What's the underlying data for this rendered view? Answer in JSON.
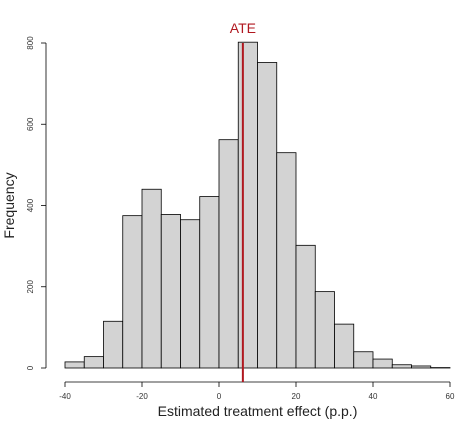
{
  "chart_data": {
    "type": "bar",
    "title": "",
    "xlabel": "Estimated treatment effect (p.p.)",
    "ylabel": "Frequency",
    "bin_edges": [
      -40,
      -35,
      -30,
      -25,
      -20,
      -15,
      -10,
      -5,
      0,
      5,
      10,
      15,
      20,
      25,
      30,
      35,
      40,
      45,
      50,
      55,
      60
    ],
    "values": [
      15,
      28,
      115,
      375,
      440,
      378,
      365,
      422,
      562,
      802,
      752,
      530,
      302,
      188,
      108,
      40,
      22,
      8,
      5,
      1
    ],
    "xlim": [
      -40,
      60
    ],
    "ylim": [
      0,
      800
    ],
    "x_ticks": [
      -40,
      -20,
      0,
      20,
      40,
      60
    ],
    "y_ticks": [
      0,
      200,
      400,
      600,
      800
    ],
    "bar_color": "#d3d3d3",
    "bar_edge_color": "#000000",
    "grid": false,
    "reference_line": {
      "label": "ATE",
      "x": 6.2,
      "color": "#b0171f"
    }
  }
}
